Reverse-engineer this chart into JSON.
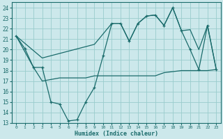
{
  "xlabel": "Humidex (Indice chaleur)",
  "xlim": [
    -0.5,
    23.5
  ],
  "ylim": [
    13,
    24.5
  ],
  "yticks": [
    13,
    14,
    15,
    16,
    17,
    18,
    19,
    20,
    21,
    22,
    23,
    24
  ],
  "xticks": [
    0,
    1,
    2,
    3,
    4,
    5,
    6,
    7,
    8,
    9,
    10,
    11,
    12,
    13,
    14,
    15,
    16,
    17,
    18,
    19,
    20,
    21,
    22,
    23
  ],
  "bg_color": "#cce8eb",
  "grid_color": "#99cccc",
  "line_color": "#1a6b6b",
  "line1_x": [
    0,
    1,
    2,
    3,
    4,
    5,
    6,
    7,
    8,
    9,
    10,
    11,
    12,
    13,
    14,
    15,
    16,
    17,
    18,
    19,
    20,
    21,
    22,
    23
  ],
  "line1_y": [
    21.3,
    20.1,
    18.3,
    18.3,
    15.0,
    14.8,
    13.2,
    13.3,
    15.0,
    16.4,
    19.4,
    22.5,
    22.5,
    20.8,
    22.5,
    23.2,
    23.3,
    22.3,
    24.0,
    21.8,
    20.0,
    18.1,
    22.3,
    18.1
  ],
  "line2_x": [
    0,
    2,
    3,
    5,
    6,
    7,
    8,
    9,
    10,
    11,
    12,
    13,
    14,
    15,
    16,
    17,
    18,
    19,
    20,
    21,
    22,
    23
  ],
  "line2_y": [
    21.3,
    18.3,
    17.0,
    17.3,
    17.3,
    17.3,
    17.3,
    17.5,
    17.5,
    17.5,
    17.5,
    17.5,
    17.5,
    17.5,
    17.5,
    17.8,
    17.9,
    18.0,
    18.0,
    18.0,
    18.0,
    18.1
  ],
  "line3_x": [
    0,
    3,
    9,
    11,
    12,
    13,
    14,
    15,
    16,
    17,
    18,
    19,
    20,
    21,
    22,
    23
  ],
  "line3_y": [
    21.3,
    19.2,
    20.5,
    22.5,
    22.5,
    20.8,
    22.5,
    23.2,
    23.3,
    22.3,
    24.0,
    21.8,
    21.9,
    20.0,
    22.3,
    18.1
  ]
}
